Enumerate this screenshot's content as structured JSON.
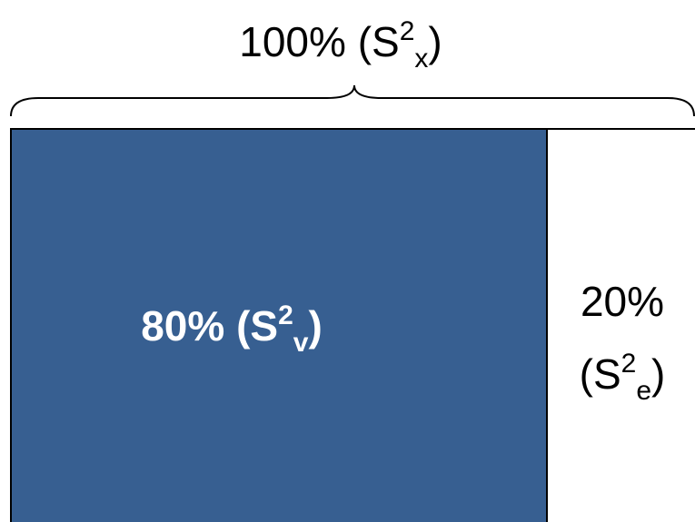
{
  "total": {
    "text": "100% (S",
    "sup": "2",
    "sub": "x",
    "close": ")"
  },
  "parts": [
    {
      "text": "80% (S",
      "sup": "2",
      "sub": "v",
      "close": ")"
    },
    {
      "line1": "20%",
      "text": "(S",
      "sup": "2",
      "sub": "e",
      "close": ")"
    }
  ]
}
